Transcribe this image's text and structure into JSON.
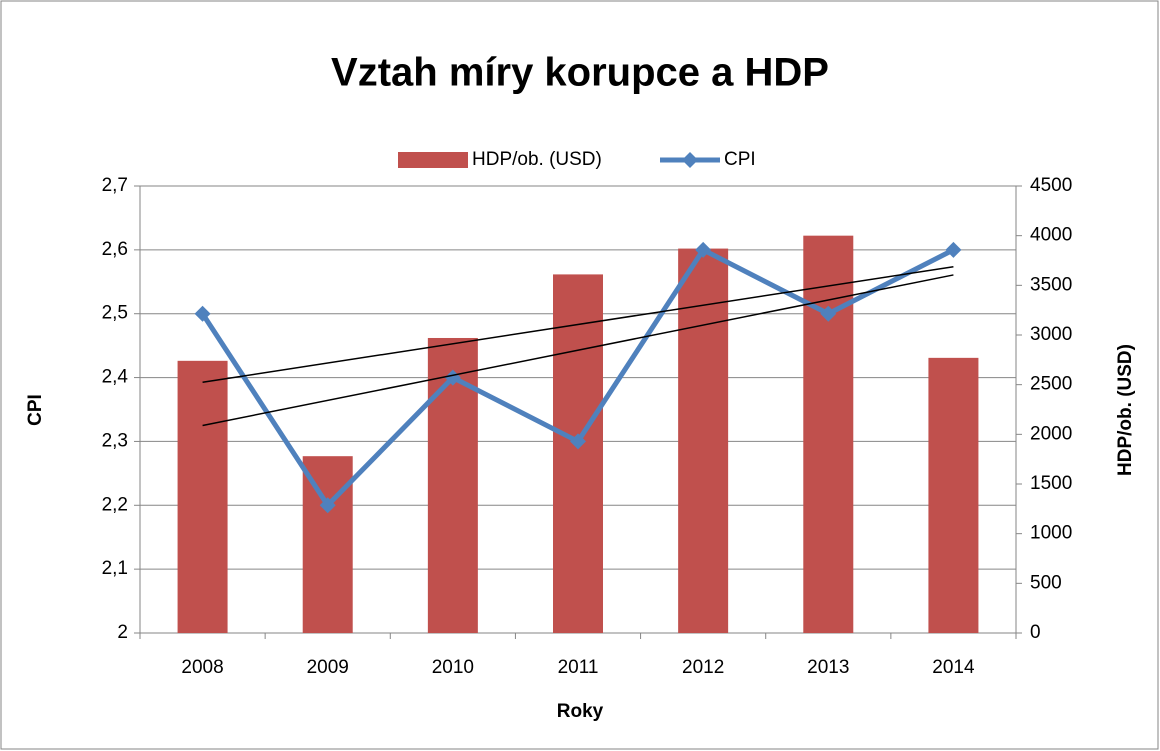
{
  "chart_data": {
    "type": "bar",
    "title": "Vztah míry korupce a HDP",
    "categories": [
      "2008",
      "2009",
      "2010",
      "2011",
      "2012",
      "2013",
      "2014"
    ],
    "series": [
      {
        "name": "HDP/ob. (USD)",
        "type": "bar",
        "axis": "y2",
        "color": "#c0504d",
        "values": [
          2740,
          1780,
          2970,
          3610,
          3870,
          4000,
          2770
        ]
      },
      {
        "name": "CPI",
        "type": "line",
        "color": "#4f81bd",
        "values": [
          2.5,
          2.2,
          2.4,
          2.3,
          2.6,
          2.5,
          2.6
        ]
      }
    ],
    "x_label": "Roky",
    "y_label": "CPI",
    "y2_label": "HDP/ob. (USD)",
    "ylim": [
      2,
      2.7
    ],
    "yticks": [
      2,
      {
        "value": 2.1,
        "label": "2,1"
      },
      {
        "value": 2.2,
        "label": "2,2"
      },
      {
        "value": 2.3,
        "label": "2,3"
      },
      {
        "value": 2.4,
        "label": "2,4"
      },
      {
        "value": 2.5,
        "label": "2,5"
      },
      {
        "value": 2.6,
        "label": "2,6"
      },
      {
        "value": 2.7,
        "label": "2,7"
      }
    ],
    "y2lim": [
      0,
      4500
    ],
    "y2ticks": [
      0,
      500,
      1000,
      1500,
      2000,
      2500,
      3000,
      3500,
      4000,
      4500
    ],
    "grid": true,
    "trendline": true,
    "legend": "top"
  }
}
